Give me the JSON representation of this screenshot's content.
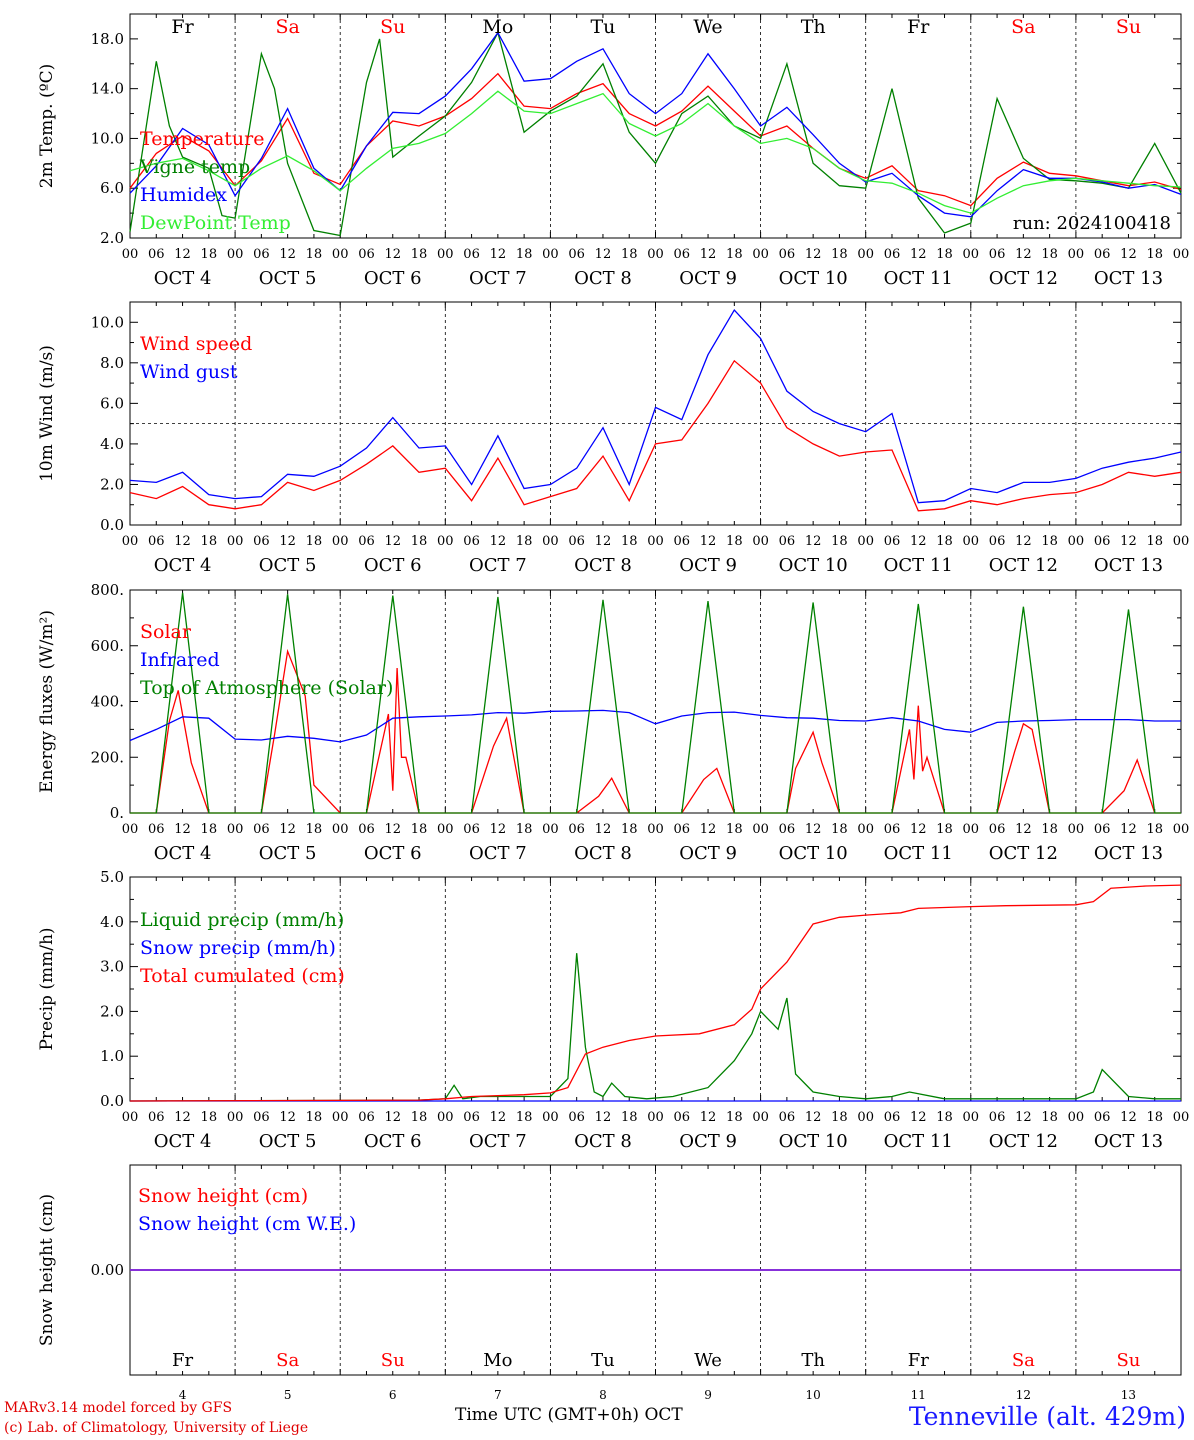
{
  "day_names": [
    "Fr",
    "Sa",
    "Su",
    "Mo",
    "Tu",
    "We",
    "Th",
    "Fr",
    "Sa",
    "Su"
  ],
  "weekend_day_color": "#ff0000",
  "date_labels": [
    "OCT  4",
    "OCT  5",
    "OCT  6",
    "OCT  7",
    "OCT  8",
    "OCT  9",
    "OCT 10",
    "OCT 11",
    "OCT 12",
    "OCT 13"
  ],
  "day_numbers": [
    "4",
    "5",
    "6",
    "7",
    "8",
    "9",
    "10",
    "11",
    "12",
    "13"
  ],
  "hour_ticks": [
    "00",
    "06",
    "12",
    "18"
  ],
  "footer": {
    "credit_line1": "MARv3.14 model forced by GFS",
    "credit_line2": "(c) Lab. of Climatology, University of Liege",
    "time_axis_label": "Time UTC (GMT+0h) OCT",
    "station": "Tenneville (alt. 429m)"
  },
  "chart_data": [
    {
      "type": "line",
      "ylabel": "2m Temp. (ºC)",
      "ylim": [
        2,
        20
      ],
      "yticks": [
        2,
        6,
        10,
        14,
        18
      ],
      "ytick_labels": [
        "2.0",
        "6.0",
        "10.0",
        "14.0",
        "18.0"
      ],
      "annotation": "run: 2024100418",
      "x_unit": "hours from 4 Oct 00 UTC",
      "series": [
        {
          "name": "Temperature",
          "color": "#ff0000",
          "x": [
            0,
            6,
            12,
            18,
            24,
            30,
            36,
            42,
            48,
            54,
            60,
            66,
            72,
            78,
            84,
            90,
            96,
            102,
            108,
            114,
            120,
            126,
            132,
            138,
            144,
            150,
            156,
            162,
            168,
            174,
            180,
            186,
            192,
            198,
            204,
            210,
            216,
            222,
            228,
            234,
            240
          ],
          "y": [
            6.0,
            8.8,
            10.2,
            9.0,
            6.2,
            8.2,
            11.6,
            7.2,
            6.3,
            9.4,
            11.4,
            11.0,
            11.8,
            13.2,
            15.2,
            12.6,
            12.4,
            13.6,
            14.4,
            12.0,
            11.0,
            12.2,
            14.2,
            12.2,
            10.2,
            11.0,
            9.2,
            7.6,
            6.8,
            7.8,
            5.8,
            5.4,
            4.6,
            6.8,
            8.1,
            7.2,
            7.0,
            6.6,
            6.2,
            6.5,
            5.9
          ]
        },
        {
          "name": "Vigne temp",
          "color": "#008000",
          "x": [
            0,
            6,
            9,
            12,
            18,
            21,
            24,
            30,
            33,
            36,
            42,
            48,
            54,
            57,
            60,
            66,
            72,
            78,
            84,
            90,
            96,
            102,
            108,
            114,
            120,
            126,
            132,
            138,
            144,
            150,
            156,
            162,
            168,
            174,
            180,
            186,
            192,
            198,
            204,
            210,
            216,
            222,
            228,
            234,
            240
          ],
          "y": [
            2.5,
            16.2,
            11.0,
            8.5,
            7.6,
            3.8,
            3.6,
            16.8,
            14.0,
            8.0,
            2.6,
            2.2,
            14.5,
            18.0,
            8.5,
            10.2,
            11.8,
            14.5,
            18.5,
            10.5,
            12.2,
            13.4,
            16.0,
            10.5,
            8.0,
            12.0,
            13.4,
            11.0,
            10.0,
            16.0,
            8.0,
            6.2,
            6.0,
            14.0,
            5.2,
            2.4,
            3.2,
            13.2,
            8.4,
            6.7,
            6.6,
            6.4,
            6.0,
            9.6,
            5.6
          ]
        },
        {
          "name": "Humidex",
          "color": "#0000ff",
          "x": [
            0,
            6,
            12,
            18,
            24,
            30,
            36,
            42,
            48,
            54,
            60,
            66,
            72,
            78,
            84,
            90,
            96,
            102,
            108,
            114,
            120,
            126,
            132,
            138,
            144,
            150,
            156,
            162,
            168,
            174,
            180,
            186,
            192,
            198,
            204,
            210,
            216,
            222,
            228,
            234,
            240
          ],
          "y": [
            5.6,
            7.8,
            10.8,
            9.5,
            5.4,
            8.4,
            12.4,
            7.6,
            5.8,
            9.4,
            12.1,
            12.0,
            13.4,
            15.6,
            18.5,
            14.6,
            14.8,
            16.2,
            17.2,
            13.6,
            12.0,
            13.6,
            16.8,
            14.0,
            11.0,
            12.5,
            10.3,
            8.0,
            6.5,
            7.2,
            5.4,
            4.0,
            3.7,
            5.8,
            7.5,
            6.8,
            6.8,
            6.5,
            6.0,
            6.3,
            5.5
          ]
        },
        {
          "name": "DewPoint Temp",
          "color": "#33ee33",
          "x": [
            0,
            6,
            12,
            18,
            24,
            30,
            36,
            42,
            48,
            54,
            60,
            66,
            72,
            78,
            84,
            90,
            96,
            102,
            108,
            114,
            120,
            126,
            132,
            138,
            144,
            150,
            156,
            162,
            168,
            174,
            180,
            186,
            192,
            198,
            204,
            210,
            216,
            222,
            228,
            234,
            240
          ],
          "y": [
            7.4,
            8.0,
            8.4,
            7.4,
            6.2,
            7.6,
            8.6,
            7.4,
            5.8,
            7.6,
            9.2,
            9.6,
            10.4,
            12.0,
            13.8,
            12.2,
            12.0,
            12.8,
            13.6,
            11.2,
            10.2,
            11.2,
            12.8,
            11.0,
            9.6,
            10.0,
            9.2,
            7.6,
            6.6,
            6.4,
            5.6,
            4.6,
            4.0,
            5.2,
            6.2,
            6.6,
            6.8,
            6.6,
            6.4,
            6.2,
            6.1
          ]
        }
      ]
    },
    {
      "type": "line",
      "ylabel": "10m Wind (m/s)",
      "ylim": [
        0,
        11
      ],
      "yticks": [
        0,
        2,
        4,
        6,
        8,
        10
      ],
      "ytick_labels": [
        "0.0",
        "2.0",
        "4.0",
        "6.0",
        "8.0",
        "10.0"
      ],
      "reference_line": 5.0,
      "series": [
        {
          "name": "Wind speed",
          "color": "#ff0000",
          "x": [
            0,
            6,
            12,
            18,
            24,
            30,
            36,
            42,
            48,
            54,
            60,
            66,
            72,
            78,
            84,
            90,
            96,
            102,
            108,
            114,
            120,
            126,
            132,
            138,
            144,
            150,
            156,
            162,
            168,
            174,
            180,
            186,
            192,
            198,
            204,
            210,
            216,
            222,
            228,
            234,
            240
          ],
          "y": [
            1.6,
            1.3,
            1.9,
            1.0,
            0.8,
            1.0,
            2.1,
            1.7,
            2.2,
            3.0,
            3.9,
            2.6,
            2.8,
            1.2,
            3.3,
            1.0,
            1.4,
            1.8,
            3.4,
            1.2,
            4.0,
            4.2,
            6.0,
            8.1,
            7.0,
            4.8,
            4.0,
            3.4,
            3.6,
            3.7,
            0.7,
            0.8,
            1.2,
            1.0,
            1.3,
            1.5,
            1.6,
            2.0,
            2.6,
            2.4,
            2.6
          ]
        },
        {
          "name": "Wind gust",
          "color": "#0000ff",
          "x": [
            0,
            6,
            12,
            18,
            24,
            30,
            36,
            42,
            48,
            54,
            60,
            66,
            72,
            78,
            84,
            90,
            96,
            102,
            108,
            114,
            120,
            126,
            132,
            138,
            144,
            150,
            156,
            162,
            168,
            174,
            180,
            186,
            192,
            198,
            204,
            210,
            216,
            222,
            228,
            234,
            240
          ],
          "y": [
            2.2,
            2.1,
            2.6,
            1.5,
            1.3,
            1.4,
            2.5,
            2.4,
            2.9,
            3.8,
            5.3,
            3.8,
            3.9,
            2.0,
            4.4,
            1.8,
            2.0,
            2.8,
            4.8,
            2.0,
            5.8,
            5.2,
            8.4,
            10.6,
            9.2,
            6.6,
            5.6,
            5.0,
            4.6,
            5.5,
            1.1,
            1.2,
            1.8,
            1.6,
            2.1,
            2.1,
            2.3,
            2.8,
            3.1,
            3.3,
            3.6
          ]
        }
      ]
    },
    {
      "type": "line",
      "ylabel": "Energy fluxes (W/m²)",
      "ylim": [
        0,
        800
      ],
      "yticks": [
        0,
        200,
        400,
        600,
        800
      ],
      "ytick_labels": [
        "0.",
        "200.",
        "400.",
        "600.",
        "800."
      ],
      "series": [
        {
          "name": "Solar",
          "color": "#ff0000",
          "x": [
            0,
            6,
            9,
            11,
            14,
            18,
            24,
            30,
            33,
            36,
            40,
            42,
            48,
            54,
            59,
            60,
            61,
            62,
            63,
            66,
            72,
            78,
            83,
            86,
            90,
            96,
            102,
            107,
            110,
            114,
            120,
            126,
            131,
            134,
            138,
            144,
            150,
            152,
            156,
            158,
            162,
            168,
            174,
            178,
            179,
            180,
            181,
            182,
            186,
            192,
            198,
            202,
            204,
            206,
            210,
            216,
            222,
            227,
            230,
            234,
            240
          ],
          "y": [
            0,
            0,
            330,
            440,
            180,
            0,
            0,
            0,
            280,
            580,
            420,
            100,
            0,
            0,
            355,
            80,
            520,
            200,
            200,
            0,
            0,
            0,
            240,
            340,
            0,
            0,
            0,
            60,
            125,
            0,
            0,
            0,
            120,
            160,
            0,
            0,
            0,
            160,
            290,
            180,
            0,
            0,
            0,
            300,
            120,
            385,
            150,
            200,
            0,
            0,
            0,
            220,
            320,
            300,
            0,
            0,
            0,
            80,
            190,
            0,
            0
          ]
        },
        {
          "name": "Infrared",
          "color": "#0000ff",
          "x": [
            0,
            6,
            12,
            18,
            24,
            30,
            36,
            42,
            48,
            54,
            60,
            66,
            72,
            78,
            84,
            90,
            96,
            102,
            108,
            114,
            120,
            126,
            132,
            138,
            144,
            150,
            156,
            162,
            168,
            174,
            180,
            186,
            192,
            198,
            204,
            210,
            216,
            222,
            228,
            234,
            240
          ],
          "y": [
            260,
            300,
            345,
            340,
            265,
            262,
            275,
            268,
            255,
            280,
            340,
            345,
            348,
            352,
            360,
            358,
            365,
            366,
            368,
            360,
            320,
            348,
            360,
            362,
            350,
            342,
            340,
            332,
            330,
            342,
            330,
            300,
            290,
            325,
            330,
            332,
            335,
            335,
            335,
            330,
            330
          ]
        },
        {
          "name": "Top of Atmosphere (Solar)",
          "color": "#008000",
          "x": [
            0,
            6,
            12,
            18,
            24,
            30,
            36,
            42,
            48,
            54,
            60,
            66,
            72,
            78,
            84,
            90,
            96,
            102,
            108,
            114,
            120,
            126,
            132,
            138,
            144,
            150,
            156,
            162,
            168,
            174,
            180,
            186,
            192,
            198,
            204,
            210,
            216,
            222,
            228,
            234,
            240
          ],
          "y": [
            0,
            0,
            790,
            0,
            0,
            0,
            785,
            0,
            0,
            0,
            780,
            0,
            0,
            0,
            775,
            0,
            0,
            0,
            765,
            0,
            0,
            0,
            760,
            0,
            0,
            0,
            755,
            0,
            0,
            0,
            750,
            0,
            0,
            0,
            740,
            0,
            0,
            0,
            730,
            0,
            0
          ]
        }
      ]
    },
    {
      "type": "line",
      "ylabel": "Precip (mm/h)",
      "ylim": [
        0,
        5
      ],
      "yticks": [
        0,
        1,
        2,
        3,
        4,
        5
      ],
      "ytick_labels": [
        "0.0",
        "1.0",
        "2.0",
        "3.0",
        "4.0",
        "5.0"
      ],
      "series": [
        {
          "name": "Liquid precip (mm/h)",
          "color": "#008000",
          "x": [
            0,
            66,
            72,
            74,
            76,
            80,
            96,
            100,
            102,
            104,
            106,
            108,
            110,
            113,
            118,
            124,
            132,
            138,
            142,
            144,
            148,
            150,
            152,
            156,
            162,
            168,
            174,
            178,
            186,
            216,
            220,
            222,
            228,
            234,
            240
          ],
          "y": [
            0,
            0.02,
            0.05,
            0.35,
            0.05,
            0.1,
            0.1,
            0.5,
            3.3,
            1.2,
            0.2,
            0.1,
            0.4,
            0.1,
            0.05,
            0.1,
            0.3,
            0.9,
            1.5,
            2.0,
            1.6,
            2.3,
            0.6,
            0.2,
            0.1,
            0.05,
            0.1,
            0.2,
            0.05,
            0.05,
            0.2,
            0.7,
            0.1,
            0.05,
            0.05
          ]
        },
        {
          "name": "Snow precip (mm/h)",
          "color": "#0000ff",
          "x": [
            0,
            240
          ],
          "y": [
            0,
            0
          ]
        },
        {
          "name": "Total cumulated (cm)",
          "color": "#ff0000",
          "x": [
            0,
            66,
            72,
            78,
            90,
            96,
            100,
            104,
            108,
            114,
            120,
            130,
            138,
            142,
            144,
            150,
            156,
            162,
            168,
            176,
            180,
            186,
            192,
            200,
            216,
            220,
            224,
            232,
            240
          ],
          "y": [
            0,
            0.02,
            0.05,
            0.1,
            0.14,
            0.18,
            0.3,
            1.05,
            1.2,
            1.35,
            1.45,
            1.5,
            1.7,
            2.05,
            2.5,
            3.1,
            3.95,
            4.1,
            4.15,
            4.2,
            4.3,
            4.32,
            4.34,
            4.36,
            4.38,
            4.45,
            4.75,
            4.8,
            4.82
          ]
        }
      ]
    },
    {
      "type": "line",
      "ylabel": "Snow height (cm)",
      "ylim": [
        -1,
        1
      ],
      "yticks": [
        0
      ],
      "ytick_labels": [
        "0.00"
      ],
      "series": [
        {
          "name": "Snow height (cm)",
          "color": "#ff0000",
          "x": [
            0,
            240
          ],
          "y": [
            0,
            0
          ]
        },
        {
          "name": "Snow height (cm W.E.)",
          "color": "#0000ff",
          "x": [
            0,
            240
          ],
          "y": [
            0,
            0
          ]
        }
      ]
    }
  ]
}
